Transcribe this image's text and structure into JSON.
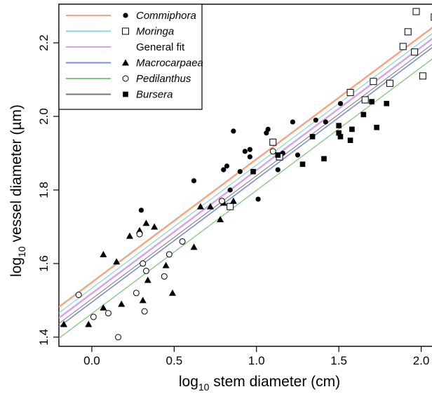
{
  "chart_data": {
    "type": "scatter",
    "title": "",
    "xlabel": "log10 stem diameter (cm)",
    "ylabel": "log10 vessel diameter (µm)",
    "xlabel_parts": {
      "base": "log",
      "sub": "10",
      "rest": " stem diameter (cm)"
    },
    "ylabel_parts": {
      "base": "log",
      "sub": "10",
      "rest": " vessel diameter (",
      "mu": "µ",
      "unit_end": "m)"
    },
    "xlim": [
      -0.2,
      2.1
    ],
    "ylim": [
      1.375,
      2.305
    ],
    "x_ticks": [
      0.0,
      0.5,
      1.0,
      1.5,
      2.0
    ],
    "x_tick_labels": [
      "0.0",
      "0.5",
      "1.0",
      "1.5",
      "2.0"
    ],
    "y_ticks": [
      1.4,
      1.6,
      1.8,
      2.0,
      2.2
    ],
    "y_tick_labels": [
      "1.4",
      "1.6",
      "1.8",
      "2.0",
      "2.2"
    ],
    "grid": false,
    "legend_position": "top-left",
    "legend": [
      {
        "label": "Commiphora",
        "italic": true,
        "line_color": "#f4a582",
        "marker": "filled-circle"
      },
      {
        "label": "Moringa",
        "italic": true,
        "line_color": "#8dd3e0",
        "marker": "open-square"
      },
      {
        "label": "General fit",
        "italic": false,
        "line_color": "#d9a3e6",
        "marker": "none"
      },
      {
        "label": "Macrocarpaea",
        "italic": true,
        "line_color": "#7b8fd8",
        "marker": "filled-triangle"
      },
      {
        "label": "Pedilanthus",
        "italic": true,
        "line_color": "#7ec77e",
        "marker": "open-circle"
      },
      {
        "label": "Bursera",
        "italic": true,
        "line_color": "#777777",
        "marker": "filled-square"
      }
    ],
    "fit_lines": [
      {
        "name": "Commiphora",
        "color": "#f4a582",
        "width": 2.5,
        "y_at_xmin": 1.482,
        "y_at_xmax": 2.252
      },
      {
        "name": "Moringa",
        "color": "#8dd3e0",
        "width": 1.3,
        "y_at_xmin": 1.466,
        "y_at_xmax": 2.236
      },
      {
        "name": "General fit",
        "color": "#d9a3e6",
        "width": 2.5,
        "y_at_xmin": 1.452,
        "y_at_xmax": 2.222
      },
      {
        "name": "Bursera",
        "color": "#777777",
        "width": 1.0,
        "y_at_xmin": 1.437,
        "y_at_xmax": 2.207
      },
      {
        "name": "Macrocarpaea",
        "color": "#7b8fd8",
        "width": 1.6,
        "y_at_xmin": 1.428,
        "y_at_xmax": 2.198
      },
      {
        "name": "Pedilanthus",
        "color": "#7ec77e",
        "width": 1.3,
        "y_at_xmin": 1.397,
        "y_at_xmax": 2.167
      }
    ],
    "series": [
      {
        "name": "Commiphora",
        "marker": "filled-circle",
        "points": [
          [
            0.3,
            1.745
          ],
          [
            0.62,
            1.825
          ],
          [
            0.8,
            1.855
          ],
          [
            0.82,
            1.865
          ],
          [
            0.84,
            1.8
          ],
          [
            0.86,
            1.96
          ],
          [
            0.9,
            1.85
          ],
          [
            0.93,
            1.905
          ],
          [
            0.96,
            1.91
          ],
          [
            0.96,
            1.89
          ],
          [
            1.01,
            1.775
          ],
          [
            1.06,
            1.955
          ],
          [
            1.07,
            1.965
          ],
          [
            1.13,
            1.855
          ],
          [
            1.16,
            1.9
          ],
          [
            1.22,
            1.985
          ],
          [
            1.25,
            1.895
          ],
          [
            1.36,
            1.99
          ],
          [
            1.42,
            1.985
          ],
          [
            1.51,
            2.035
          ]
        ]
      },
      {
        "name": "Moringa",
        "marker": "open-square",
        "points": [
          [
            0.84,
            1.755
          ],
          [
            1.1,
            1.93
          ],
          [
            1.14,
            1.89
          ],
          [
            1.57,
            2.065
          ],
          [
            1.66,
            2.045
          ],
          [
            1.71,
            2.095
          ],
          [
            1.81,
            2.09
          ],
          [
            1.89,
            2.19
          ],
          [
            1.92,
            2.23
          ],
          [
            1.96,
            2.175
          ],
          [
            1.97,
            2.285
          ],
          [
            2.01,
            2.11
          ],
          [
            2.08,
            2.27
          ]
        ]
      },
      {
        "name": "Macrocarpaea",
        "marker": "filled-triangle",
        "points": [
          [
            -0.17,
            1.435
          ],
          [
            -0.02,
            1.435
          ],
          [
            0.07,
            1.48
          ],
          [
            0.07,
            1.625
          ],
          [
            0.15,
            1.605
          ],
          [
            0.18,
            1.49
          ],
          [
            0.23,
            1.675
          ],
          [
            0.29,
            1.69
          ],
          [
            0.31,
            1.5
          ],
          [
            0.33,
            1.71
          ],
          [
            0.34,
            1.555
          ],
          [
            0.38,
            1.7
          ],
          [
            0.45,
            1.595
          ],
          [
            0.49,
            1.52
          ],
          [
            0.62,
            1.645
          ],
          [
            0.66,
            1.755
          ],
          [
            0.72,
            1.755
          ],
          [
            0.78,
            1.72
          ],
          [
            0.8,
            1.765
          ],
          [
            0.86,
            1.77
          ]
        ]
      },
      {
        "name": "Pedilanthus",
        "marker": "open-circle",
        "points": [
          [
            -0.08,
            1.515
          ],
          [
            0.01,
            1.455
          ],
          [
            0.1,
            1.465
          ],
          [
            0.16,
            1.4
          ],
          [
            0.27,
            1.52
          ],
          [
            0.29,
            1.68
          ],
          [
            0.31,
            1.6
          ],
          [
            0.32,
            1.47
          ],
          [
            0.33,
            1.58
          ],
          [
            0.44,
            1.565
          ],
          [
            0.47,
            1.625
          ],
          [
            0.55,
            1.66
          ],
          [
            0.79,
            1.77
          ],
          [
            1.1,
            1.905
          ]
        ]
      },
      {
        "name": "Bursera",
        "marker": "filled-square",
        "points": [
          [
            0.98,
            1.85
          ],
          [
            1.13,
            1.895
          ],
          [
            1.28,
            1.87
          ],
          [
            1.34,
            1.945
          ],
          [
            1.41,
            1.885
          ],
          [
            1.5,
            1.975
          ],
          [
            1.51,
            1.945
          ],
          [
            1.5,
            1.955
          ],
          [
            1.57,
            1.935
          ],
          [
            1.58,
            1.965
          ],
          [
            1.65,
            2.005
          ],
          [
            1.7,
            2.04
          ],
          [
            1.73,
            1.97
          ],
          [
            1.79,
            2.035
          ]
        ]
      }
    ]
  }
}
